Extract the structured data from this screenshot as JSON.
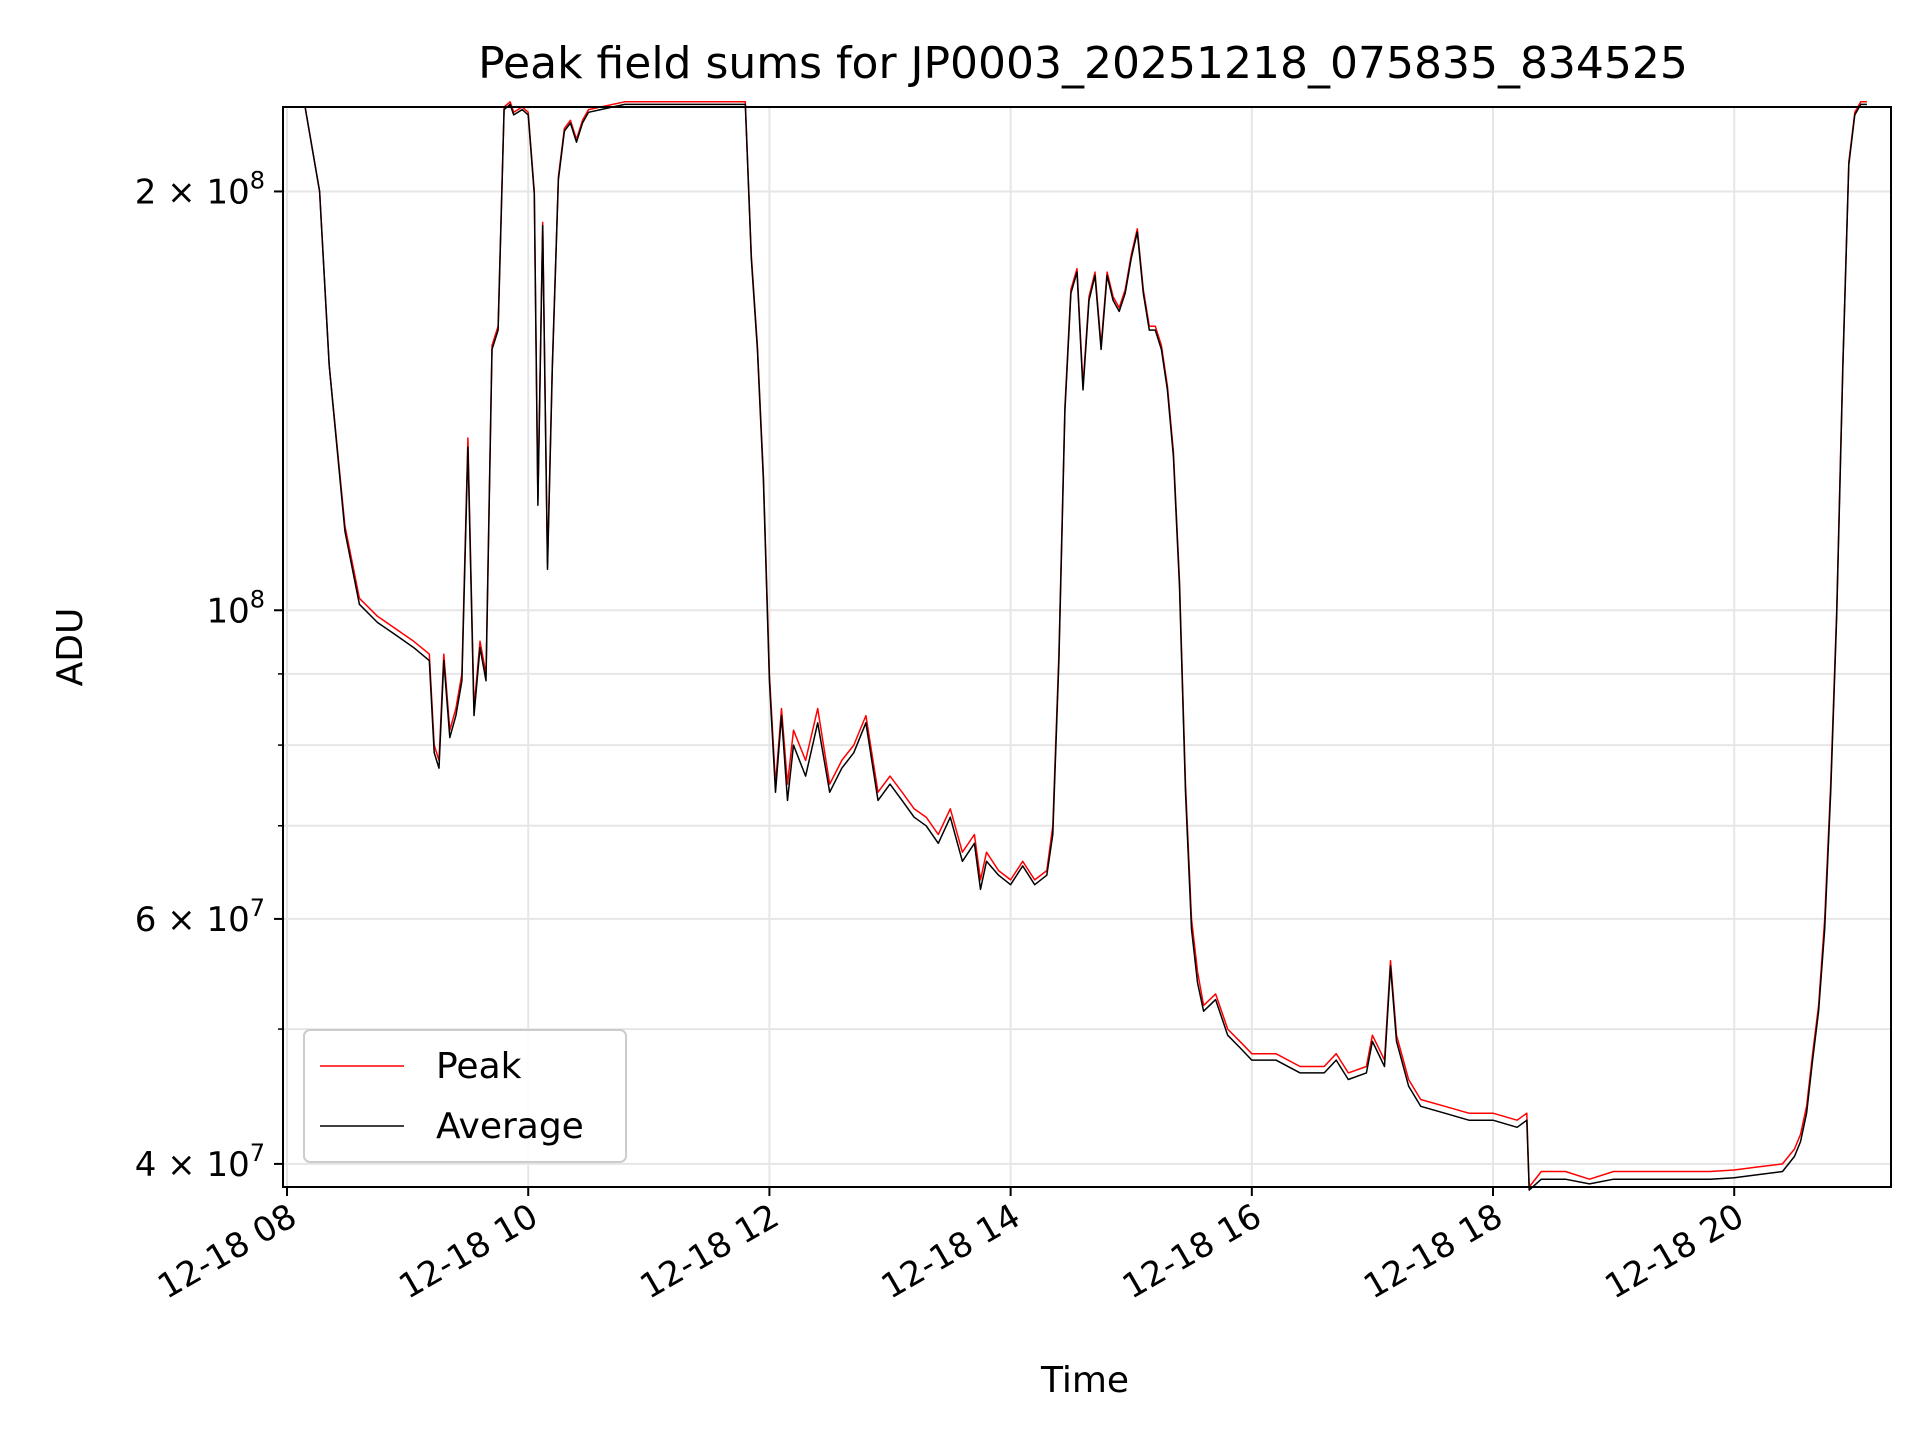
{
  "chart_data": {
    "type": "line",
    "title": "Peak field sums for JP0003_20251218_075835_834525",
    "xlabel": "Time",
    "ylabel": "ADU",
    "xlim": [
      "12-18 07:58",
      "12-18 21:18"
    ],
    "ylim": [
      38500000,
      230000000
    ],
    "yscale": "log",
    "grid": true,
    "legend_position": "lower-left",
    "x_ticks": [
      "12-18 08",
      "12-18 10",
      "12-18 12",
      "12-18 14",
      "12-18 16",
      "12-18 18",
      "12-18 20"
    ],
    "x_tick_hours": [
      8,
      10,
      12,
      14,
      16,
      18,
      20
    ],
    "y_ticks": [
      {
        "value": 40000000,
        "mantissa": "4",
        "exp": "7"
      },
      {
        "value": 60000000,
        "mantissa": "6",
        "exp": "7"
      },
      {
        "value": 100000000,
        "mantissa": "",
        "exp": "8"
      },
      {
        "value": 200000000,
        "mantissa": "2",
        "exp": "8"
      }
    ],
    "y_minor_ticks": [
      50000000,
      70000000,
      80000000,
      90000000
    ],
    "series": [
      {
        "name": "Peak",
        "color": "#ff0000",
        "x_hours": [
          7.98,
          8.15,
          8.27,
          8.35,
          8.48,
          8.6,
          8.75,
          8.9,
          9.05,
          9.18,
          9.22,
          9.26,
          9.3,
          9.35,
          9.4,
          9.45,
          9.5,
          9.55,
          9.6,
          9.65,
          9.7,
          9.75,
          9.8,
          9.85,
          9.88,
          9.95,
          10.0,
          10.05,
          10.08,
          10.12,
          10.16,
          10.2,
          10.25,
          10.3,
          10.35,
          10.4,
          10.45,
          10.5,
          10.6,
          10.8,
          11.0,
          11.5,
          11.8,
          11.85,
          11.9,
          11.95,
          12.0,
          12.05,
          12.1,
          12.15,
          12.2,
          12.3,
          12.4,
          12.5,
          12.6,
          12.7,
          12.8,
          12.9,
          13.0,
          13.1,
          13.2,
          13.3,
          13.4,
          13.5,
          13.6,
          13.7,
          13.75,
          13.8,
          13.9,
          14.0,
          14.1,
          14.2,
          14.3,
          14.35,
          14.4,
          14.45,
          14.5,
          14.55,
          14.6,
          14.65,
          14.7,
          14.75,
          14.8,
          14.85,
          14.9,
          14.95,
          15.0,
          15.05,
          15.1,
          15.15,
          15.2,
          15.25,
          15.3,
          15.35,
          15.4,
          15.45,
          15.5,
          15.55,
          15.6,
          15.7,
          15.8,
          15.9,
          16.0,
          16.2,
          16.4,
          16.6,
          16.7,
          16.8,
          16.95,
          17.0,
          17.1,
          17.15,
          17.2,
          17.3,
          17.4,
          17.6,
          17.8,
          18.0,
          18.2,
          18.28,
          18.3,
          18.4,
          18.6,
          18.8,
          19.0,
          19.2,
          19.4,
          19.6,
          19.8,
          20.0,
          20.2,
          20.4,
          20.5,
          20.55,
          20.6,
          20.65,
          20.7,
          20.75,
          20.8,
          20.85,
          20.9,
          20.95,
          21.0,
          21.05,
          21.1
        ],
        "values": [
          230000000,
          230000000,
          200000000,
          150000000,
          115000000,
          102000000,
          99000000,
          97000000,
          95000000,
          93000000,
          80000000,
          78000000,
          93000000,
          82000000,
          85000000,
          90000000,
          133000000,
          85000000,
          95000000,
          90000000,
          155000000,
          160000000,
          230000000,
          232000000,
          228000000,
          230000000,
          228000000,
          200000000,
          120000000,
          190000000,
          108000000,
          150000000,
          205000000,
          222000000,
          225000000,
          218000000,
          225000000,
          229000000,
          230000000,
          232000000,
          232000000,
          232000000,
          232000000,
          180000000,
          155000000,
          125000000,
          90000000,
          75000000,
          85000000,
          75000000,
          82000000,
          78000000,
          85000000,
          75000000,
          78000000,
          80000000,
          84000000,
          74000000,
          76000000,
          74000000,
          72000000,
          71000000,
          69000000,
          72000000,
          67000000,
          69000000,
          64000000,
          67000000,
          65000000,
          64000000,
          66000000,
          64000000,
          65000000,
          70000000,
          93000000,
          140000000,
          170000000,
          176000000,
          145000000,
          168000000,
          175000000,
          155000000,
          175000000,
          168000000,
          165000000,
          170000000,
          180000000,
          188000000,
          170000000,
          160000000,
          160000000,
          155000000,
          145000000,
          130000000,
          105000000,
          75000000,
          60000000,
          55000000,
          52000000,
          53000000,
          50000000,
          49000000,
          48000000,
          48000000,
          47000000,
          47000000,
          48000000,
          46500000,
          47000000,
          49500000,
          47500000,
          56000000,
          49500000,
          46000000,
          44500000,
          44000000,
          43500000,
          43500000,
          43000000,
          43500000,
          38500000,
          39500000,
          39500000,
          39000000,
          39500000,
          39500000,
          39500000,
          39500000,
          39500000,
          39600000,
          39800000,
          40000000,
          41000000,
          42000000,
          44000000,
          48000000,
          52000000,
          60000000,
          75000000,
          100000000,
          150000000,
          210000000,
          228000000,
          232000000,
          232000000
        ]
      },
      {
        "name": "Average",
        "color": "#000000",
        "x_hours": [
          7.98,
          8.15,
          8.27,
          8.35,
          8.48,
          8.6,
          8.75,
          8.9,
          9.05,
          9.18,
          9.22,
          9.26,
          9.3,
          9.35,
          9.4,
          9.45,
          9.5,
          9.55,
          9.6,
          9.65,
          9.7,
          9.75,
          9.8,
          9.85,
          9.88,
          9.95,
          10.0,
          10.05,
          10.08,
          10.12,
          10.16,
          10.2,
          10.25,
          10.3,
          10.35,
          10.4,
          10.45,
          10.5,
          10.6,
          10.8,
          11.0,
          11.5,
          11.8,
          11.85,
          11.9,
          11.95,
          12.0,
          12.05,
          12.1,
          12.15,
          12.2,
          12.3,
          12.4,
          12.5,
          12.6,
          12.7,
          12.8,
          12.9,
          13.0,
          13.1,
          13.2,
          13.3,
          13.4,
          13.5,
          13.6,
          13.7,
          13.75,
          13.8,
          13.9,
          14.0,
          14.1,
          14.2,
          14.3,
          14.35,
          14.4,
          14.45,
          14.5,
          14.55,
          14.6,
          14.65,
          14.7,
          14.75,
          14.8,
          14.85,
          14.9,
          14.95,
          15.0,
          15.05,
          15.1,
          15.15,
          15.2,
          15.25,
          15.3,
          15.35,
          15.4,
          15.45,
          15.5,
          15.55,
          15.6,
          15.7,
          15.8,
          15.9,
          16.0,
          16.2,
          16.4,
          16.6,
          16.7,
          16.8,
          16.95,
          17.0,
          17.1,
          17.15,
          17.2,
          17.3,
          17.4,
          17.6,
          17.8,
          18.0,
          18.2,
          18.28,
          18.3,
          18.4,
          18.6,
          18.8,
          19.0,
          19.2,
          19.4,
          19.6,
          19.8,
          20.0,
          20.2,
          20.4,
          20.5,
          20.55,
          20.6,
          20.65,
          20.7,
          20.75,
          20.8,
          20.85,
          20.9,
          20.95,
          21.0,
          21.05,
          21.1
        ],
        "values": [
          230000000,
          230000000,
          200000000,
          150000000,
          114000000,
          101000000,
          98000000,
          96000000,
          94000000,
          92000000,
          79000000,
          77000000,
          92000000,
          81000000,
          84000000,
          89000000,
          131000000,
          84000000,
          94000000,
          89000000,
          154000000,
          159000000,
          229000000,
          231000000,
          227000000,
          229000000,
          227000000,
          199000000,
          119000000,
          189000000,
          107000000,
          149000000,
          204000000,
          221000000,
          224000000,
          217000000,
          224000000,
          228000000,
          229000000,
          231000000,
          231000000,
          231000000,
          231000000,
          179000000,
          154000000,
          124000000,
          89000000,
          74000000,
          84000000,
          73000000,
          80000000,
          76000000,
          83000000,
          74000000,
          77000000,
          79000000,
          83000000,
          73000000,
          75000000,
          73000000,
          71000000,
          70000000,
          68000000,
          71000000,
          66000000,
          68000000,
          63000000,
          66000000,
          64500000,
          63500000,
          65500000,
          63500000,
          64500000,
          69000000,
          92000000,
          139000000,
          169000000,
          175000000,
          144000000,
          167000000,
          174000000,
          154000000,
          174000000,
          167000000,
          164000000,
          169000000,
          179000000,
          187000000,
          169000000,
          159000000,
          159000000,
          154000000,
          144000000,
          129000000,
          104000000,
          74000000,
          59000000,
          54000000,
          51500000,
          52500000,
          49500000,
          48500000,
          47500000,
          47500000,
          46500000,
          46500000,
          47500000,
          46000000,
          46500000,
          49000000,
          47000000,
          55500000,
          49000000,
          45500000,
          44000000,
          43500000,
          43000000,
          43000000,
          42500000,
          43000000,
          38300000,
          39000000,
          39000000,
          38700000,
          39000000,
          39000000,
          39000000,
          39000000,
          39000000,
          39100000,
          39300000,
          39500000,
          40500000,
          41500000,
          43500000,
          47500000,
          51500000,
          59000000,
          74000000,
          99000000,
          149000000,
          209000000,
          227000000,
          231000000,
          231000000
        ]
      }
    ]
  }
}
